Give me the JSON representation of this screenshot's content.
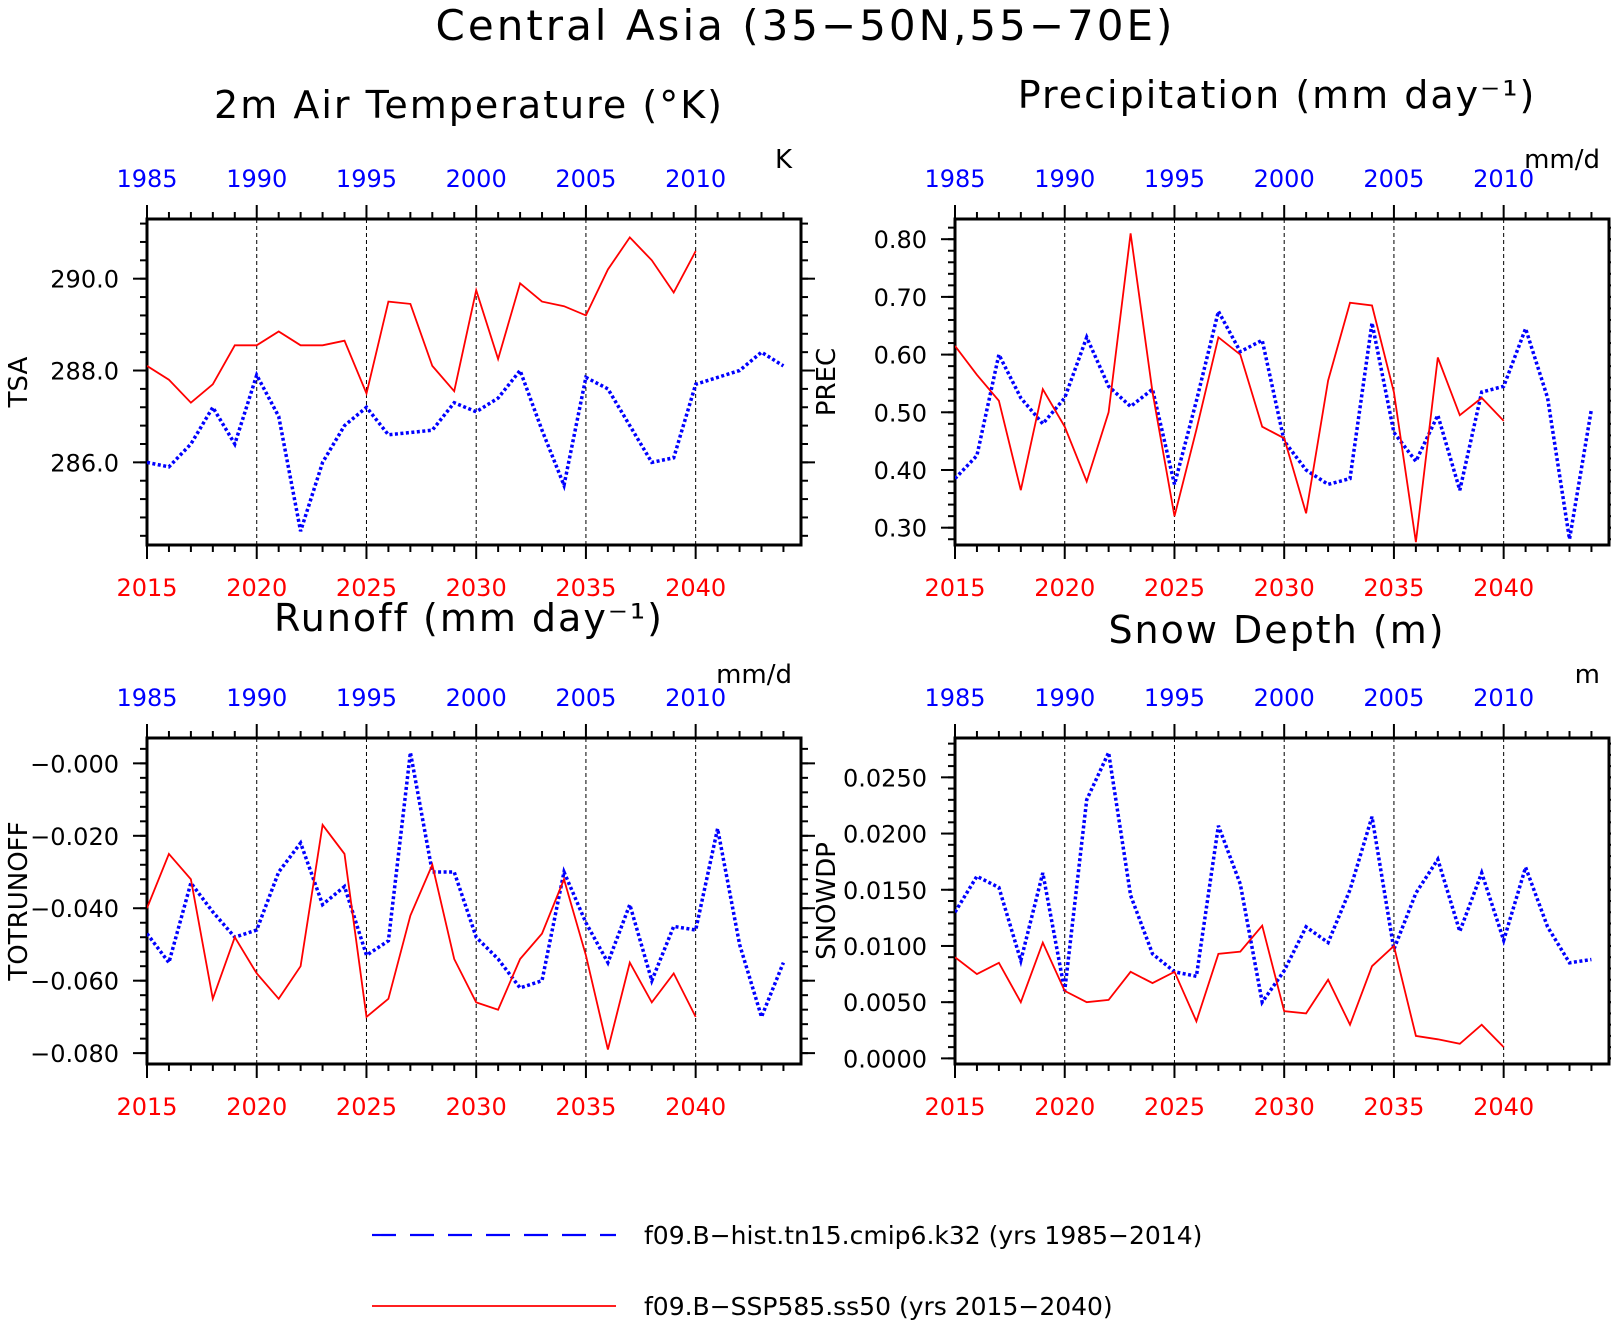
{
  "figure": {
    "title": "Central Asia (35−50N,55−70E)",
    "colors": {
      "historical": "#0000ff",
      "future": "#ff0000",
      "axis": "#000000",
      "grid": "#000000"
    },
    "legend": {
      "placement": "bottom-center",
      "entries": [
        {
          "label": "f09.B−hist.tn15.cmip6.k32 (yrs 1985−2014)",
          "color": "#0000ff",
          "style": "dashed"
        },
        {
          "label": "f09.B−SSP585.ss50 (yrs 2015−2040)",
          "color": "#ff0000",
          "style": "solid"
        }
      ]
    }
  },
  "chart_data": [
    {
      "type": "line",
      "title": "2m Air Temperature (°K)",
      "units": "K",
      "ylabel": "TSA",
      "ylim": [
        284.2,
        291.3
      ],
      "yticks": [
        286.0,
        288.0,
        290.0
      ],
      "ytick_labels": [
        "286.0",
        "288.0",
        "290.0"
      ],
      "ytick_minor": 0.4,
      "top_ticks": [
        "1985",
        "1990",
        "1995",
        "2000",
        "2005",
        "2010"
      ],
      "bottom_ticks": [
        "2015",
        "2020",
        "2025",
        "2030",
        "2035",
        "2040"
      ],
      "series": [
        {
          "name": "f09.B−hist.tn15.cmip6.k32 (yrs 1985−2014)",
          "style": "dashed",
          "x": [
            1985,
            1986,
            1987,
            1988,
            1989,
            1990,
            1991,
            1992,
            1993,
            1994,
            1995,
            1996,
            1997,
            1998,
            1999,
            2000,
            2001,
            2002,
            2003,
            2004,
            2005,
            2006,
            2007,
            2008,
            2009,
            2010,
            2011,
            2012,
            2013,
            2014
          ],
          "values": [
            286.0,
            285.9,
            286.4,
            287.2,
            286.4,
            287.9,
            287.0,
            284.5,
            286.0,
            286.8,
            287.2,
            286.6,
            286.65,
            286.7,
            287.3,
            287.1,
            287.4,
            288.0,
            286.7,
            285.5,
            287.85,
            287.6,
            286.8,
            286.0,
            286.1,
            287.7,
            287.85,
            288.0,
            288.4,
            288.1
          ]
        },
        {
          "name": "f09.B−SSP585.ss50 (yrs 2015−2040)",
          "style": "solid",
          "x": [
            2015,
            2016,
            2017,
            2018,
            2019,
            2020,
            2021,
            2022,
            2023,
            2024,
            2025,
            2026,
            2027,
            2028,
            2029,
            2030,
            2031,
            2032,
            2033,
            2034,
            2035,
            2036,
            2037,
            2038,
            2039,
            2040
          ],
          "values": [
            288.1,
            287.8,
            287.3,
            287.7,
            288.55,
            288.55,
            288.85,
            288.55,
            288.55,
            288.65,
            287.5,
            289.5,
            289.45,
            288.1,
            287.55,
            289.75,
            288.25,
            289.9,
            289.5,
            289.4,
            289.2,
            290.2,
            290.9,
            290.4,
            289.7,
            290.6
          ]
        }
      ]
    },
    {
      "type": "line",
      "title": "Precipitation (mm day⁻¹)",
      "units": "mm/d",
      "ylabel": "PREC",
      "ylim": [
        0.27,
        0.835
      ],
      "yticks": [
        0.3,
        0.4,
        0.5,
        0.6,
        0.7,
        0.8
      ],
      "ytick_labels": [
        "0.30",
        "0.40",
        "0.50",
        "0.60",
        "0.70",
        "0.80"
      ],
      "ytick_minor": 0.02,
      "top_ticks": [
        "1985",
        "1990",
        "1995",
        "2000",
        "2005",
        "2010"
      ],
      "bottom_ticks": [
        "2015",
        "2020",
        "2025",
        "2030",
        "2035",
        "2040"
      ],
      "series": [
        {
          "name": "f09.B−hist.tn15.cmip6.k32 (yrs 1985−2014)",
          "style": "dashed",
          "x": [
            1985,
            1986,
            1987,
            1988,
            1989,
            1990,
            1991,
            1992,
            1993,
            1994,
            1995,
            1996,
            1997,
            1998,
            1999,
            2000,
            2001,
            2002,
            2003,
            2004,
            2005,
            2006,
            2007,
            2008,
            2009,
            2010,
            2011,
            2012,
            2013,
            2014
          ],
          "values": [
            0.385,
            0.425,
            0.6,
            0.525,
            0.48,
            0.525,
            0.63,
            0.545,
            0.51,
            0.54,
            0.375,
            0.52,
            0.675,
            0.605,
            0.625,
            0.45,
            0.4,
            0.375,
            0.385,
            0.655,
            0.465,
            0.415,
            0.495,
            0.365,
            0.535,
            0.545,
            0.645,
            0.525,
            0.28,
            0.505
          ]
        },
        {
          "name": "f09.B−SSP585.ss50 (yrs 2015−2040)",
          "style": "solid",
          "x": [
            2015,
            2016,
            2017,
            2018,
            2019,
            2020,
            2021,
            2022,
            2023,
            2024,
            2025,
            2026,
            2027,
            2028,
            2029,
            2030,
            2031,
            2032,
            2033,
            2034,
            2035,
            2036,
            2037,
            2038,
            2039,
            2040
          ],
          "values": [
            0.615,
            0.565,
            0.52,
            0.365,
            0.54,
            0.475,
            0.38,
            0.5,
            0.81,
            0.535,
            0.32,
            0.47,
            0.63,
            0.6,
            0.475,
            0.455,
            0.325,
            0.555,
            0.69,
            0.685,
            0.535,
            0.275,
            0.595,
            0.495,
            0.525,
            0.485
          ]
        }
      ]
    },
    {
      "type": "line",
      "title": "Runoff (mm day⁻¹)",
      "units": "mm/d",
      "ylabel": "TOTRUNOFF",
      "ylim": [
        -0.083,
        0.007
      ],
      "yticks": [
        -0.08,
        -0.06,
        -0.04,
        -0.02,
        0.0
      ],
      "ytick_labels": [
        "−0.080",
        "−0.060",
        "−0.040",
        "−0.020",
        "−0.000"
      ],
      "ytick_minor": 0.004,
      "top_ticks": [
        "1985",
        "1990",
        "1995",
        "2000",
        "2005",
        "2010"
      ],
      "bottom_ticks": [
        "2015",
        "2020",
        "2025",
        "2030",
        "2035",
        "2040"
      ],
      "series": [
        {
          "name": "f09.B−hist.tn15.cmip6.k32 (yrs 1985−2014)",
          "style": "dashed",
          "x": [
            1985,
            1986,
            1987,
            1988,
            1989,
            1990,
            1991,
            1992,
            1993,
            1994,
            1995,
            1996,
            1997,
            1998,
            1999,
            2000,
            2001,
            2002,
            2003,
            2004,
            2005,
            2006,
            2007,
            2008,
            2009,
            2010,
            2011,
            2012,
            2013,
            2014
          ],
          "values": [
            -0.047,
            -0.055,
            -0.033,
            -0.041,
            -0.048,
            -0.046,
            -0.03,
            -0.022,
            -0.039,
            -0.034,
            -0.053,
            -0.049,
            0.003,
            -0.03,
            -0.03,
            -0.048,
            -0.054,
            -0.062,
            -0.06,
            -0.03,
            -0.044,
            -0.055,
            -0.039,
            -0.06,
            -0.045,
            -0.046,
            -0.018,
            -0.05,
            -0.07,
            -0.055
          ]
        },
        {
          "name": "f09.B−SSP585.ss50 (yrs 2015−2040)",
          "style": "solid",
          "x": [
            2015,
            2016,
            2017,
            2018,
            2019,
            2020,
            2021,
            2022,
            2023,
            2024,
            2025,
            2026,
            2027,
            2028,
            2029,
            2030,
            2031,
            2032,
            2033,
            2034,
            2035,
            2036,
            2037,
            2038,
            2039,
            2040
          ],
          "values": [
            -0.04,
            -0.025,
            -0.032,
            -0.065,
            -0.048,
            -0.058,
            -0.065,
            -0.056,
            -0.017,
            -0.025,
            -0.07,
            -0.065,
            -0.042,
            -0.028,
            -0.054,
            -0.066,
            -0.068,
            -0.054,
            -0.047,
            -0.032,
            -0.053,
            -0.079,
            -0.055,
            -0.066,
            -0.058,
            -0.07
          ]
        }
      ]
    },
    {
      "type": "line",
      "title": "Snow Depth (m)",
      "units": "m",
      "ylabel": "SNOWDP",
      "ylim": [
        -0.0005,
        0.0285
      ],
      "yticks": [
        0.0,
        0.005,
        0.01,
        0.015,
        0.02,
        0.025
      ],
      "ytick_labels": [
        "0.0000",
        "0.0050",
        "0.0100",
        "0.0150",
        "0.0200",
        "0.0250"
      ],
      "ytick_minor": 0.001,
      "top_ticks": [
        "1985",
        "1990",
        "1995",
        "2000",
        "2005",
        "2010"
      ],
      "bottom_ticks": [
        "2015",
        "2020",
        "2025",
        "2030",
        "2035",
        "2040"
      ],
      "series": [
        {
          "name": "f09.B−hist.tn15.cmip6.k32 (yrs 1985−2014)",
          "style": "dashed",
          "x": [
            1985,
            1986,
            1987,
            1988,
            1989,
            1990,
            1991,
            1992,
            1993,
            1994,
            1995,
            1996,
            1997,
            1998,
            1999,
            2000,
            2001,
            2002,
            2003,
            2004,
            2005,
            2006,
            2007,
            2008,
            2009,
            2010,
            2011,
            2012,
            2013,
            2014
          ],
          "values": [
            0.013,
            0.0162,
            0.0152,
            0.0087,
            0.0165,
            0.006,
            0.023,
            0.0272,
            0.0145,
            0.0093,
            0.0077,
            0.0073,
            0.0207,
            0.0155,
            0.005,
            0.0078,
            0.0117,
            0.0103,
            0.015,
            0.0215,
            0.0097,
            0.0147,
            0.0177,
            0.0113,
            0.0165,
            0.0105,
            0.017,
            0.0117,
            0.0085,
            0.0088
          ]
        },
        {
          "name": "f09.B−SSP585.ss50 (yrs 2015−2040)",
          "style": "solid",
          "x": [
            2015,
            2016,
            2017,
            2018,
            2019,
            2020,
            2021,
            2022,
            2023,
            2024,
            2025,
            2026,
            2027,
            2028,
            2029,
            2030,
            2031,
            2032,
            2033,
            2034,
            2035,
            2036,
            2037,
            2038,
            2039,
            2040
          ],
          "values": [
            0.009,
            0.0075,
            0.0085,
            0.005,
            0.0103,
            0.006,
            0.005,
            0.0052,
            0.0077,
            0.0067,
            0.0077,
            0.0033,
            0.0093,
            0.0095,
            0.0118,
            0.0042,
            0.004,
            0.007,
            0.003,
            0.0082,
            0.01,
            0.002,
            0.0017,
            0.0013,
            0.003,
            0.001
          ]
        }
      ]
    }
  ]
}
